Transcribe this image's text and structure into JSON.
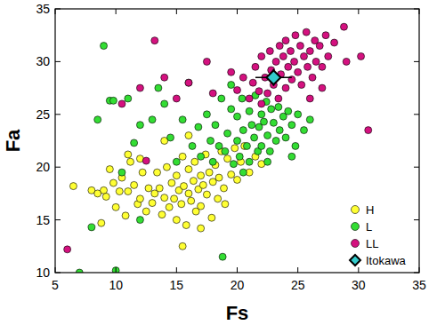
{
  "chart_data": {
    "type": "scatter",
    "x_label": "Fs",
    "y_label": "Fa",
    "xlim": [
      5,
      35
    ],
    "ylim": [
      10,
      35
    ],
    "xticks": [
      5,
      10,
      15,
      20,
      25,
      30,
      35
    ],
    "yticks": [
      10,
      15,
      20,
      25,
      30,
      35
    ],
    "grid": false,
    "legend": "lower right",
    "series": [
      {
        "name": "H",
        "color": "#ffff33",
        "marker": "circle",
        "x": [
          6.5,
          8,
          8.5,
          8.8,
          9,
          9.2,
          9.5,
          9.8,
          10,
          10.3,
          10.5,
          10.8,
          11,
          11.2,
          11.5,
          11.8,
          12,
          12.2,
          12.5,
          12.7,
          13,
          13.2,
          13.4,
          13.6,
          13.8,
          14,
          14.2,
          14.4,
          14.6,
          14.8,
          15,
          15,
          15.2,
          15.4,
          15.5,
          15.6,
          15.8,
          16,
          16,
          16.2,
          16.4,
          16.5,
          16.6,
          16.8,
          17,
          17,
          17.2,
          17.4,
          17.5,
          17.7,
          17.9,
          18,
          18.2,
          18.4,
          18.5,
          18.7,
          18.9,
          19,
          19.2,
          19.5,
          19.8,
          20,
          20.3,
          20.6,
          21,
          21.5,
          22,
          15.5,
          17,
          12,
          14,
          11,
          16
        ],
        "values": [
          18.2,
          17.8,
          17.5,
          14.7,
          17.8,
          17.2,
          19.8,
          18.5,
          16.2,
          17.7,
          19,
          15.4,
          17.7,
          20.5,
          18.3,
          16.5,
          17,
          19.5,
          15.8,
          18,
          16.6,
          17.5,
          19.5,
          18,
          15.5,
          17.1,
          20,
          16.2,
          18.5,
          17,
          19.2,
          15,
          17.8,
          16.5,
          21,
          18.2,
          14.5,
          17.5,
          19.8,
          16.8,
          18.7,
          20.5,
          15.8,
          17.9,
          19.2,
          16.3,
          18.3,
          21.2,
          17.4,
          19.5,
          15.2,
          18.6,
          20.2,
          17,
          19,
          21.5,
          18,
          16.5,
          20.8,
          19.3,
          21.8,
          18.8,
          20.5,
          22,
          19.5,
          21,
          20.3,
          12.5,
          14.2,
          20.8,
          22.5,
          21.2,
          23
        ]
      },
      {
        "name": "L",
        "color": "#33dd33",
        "marker": "circle",
        "x": [
          7,
          8,
          8.5,
          9,
          9.5,
          9.8,
          10,
          10.5,
          11,
          11.5,
          12,
          12,
          13,
          13.5,
          14,
          14.5,
          15,
          15.5,
          16,
          16.3,
          16.8,
          17,
          17.5,
          17.8,
          18,
          18.2,
          18.5,
          18.7,
          18.8,
          19,
          19.2,
          19.5,
          19.7,
          20,
          20,
          20.2,
          20.4,
          20.5,
          20.8,
          21,
          21,
          21.2,
          21.4,
          21.5,
          21.7,
          21.8,
          22,
          22,
          22.2,
          22.4,
          22.5,
          22.7,
          22.8,
          23,
          23.2,
          23.4,
          23.5,
          23.8,
          24,
          24.2,
          24.5,
          24.8,
          25,
          25.5,
          26,
          19.5,
          20.5,
          22.5,
          24.5
        ],
        "values": [
          10,
          14.3,
          24.5,
          31.5,
          26.3,
          26.3,
          10.2,
          19.5,
          26.5,
          22.3,
          24,
          15,
          24.5,
          27.5,
          26,
          22.8,
          20.5,
          24.5,
          28,
          22,
          23.8,
          21,
          25,
          22.5,
          20.5,
          24,
          22,
          26.5,
          11.5,
          21.5,
          23.2,
          25.5,
          20.3,
          22.5,
          24.8,
          21,
          26.5,
          23.5,
          22,
          25.3,
          20.5,
          24,
          22.8,
          26.8,
          21.5,
          23.8,
          25,
          22,
          24.3,
          26.2,
          23,
          21.5,
          25.5,
          24.2,
          22.5,
          25.7,
          23.5,
          24.8,
          22.8,
          25.3,
          24,
          22,
          25,
          23.5,
          24.5,
          27.8,
          19.5,
          20.5,
          21
        ]
      },
      {
        "name": "LL",
        "color": "#d4117f",
        "marker": "circle",
        "x": [
          6,
          10.5,
          12,
          12.5,
          13.2,
          14,
          15,
          16,
          17.5,
          18,
          19.5,
          20,
          20.5,
          21,
          21.3,
          21.5,
          21.8,
          22,
          22,
          22.3,
          22.5,
          22.7,
          22.8,
          23,
          23.2,
          23.4,
          23.5,
          23.6,
          23.8,
          24,
          24,
          24.2,
          24.4,
          24.5,
          24.7,
          24.8,
          25,
          25.2,
          25.3,
          25.5,
          25.7,
          25.8,
          26,
          26.2,
          26.4,
          26.5,
          26.8,
          27,
          27.3,
          27.5,
          28,
          28.8,
          29,
          30.2,
          30.8,
          26,
          27
        ],
        "values": [
          12.2,
          26,
          27.5,
          20.6,
          32,
          28.5,
          26.5,
          28,
          30,
          27,
          29,
          27.3,
          28.5,
          26.5,
          28,
          29.5,
          27.2,
          30.5,
          26,
          28.5,
          27,
          31,
          29.2,
          27.8,
          30,
          26.5,
          31.5,
          28.8,
          30.5,
          27.5,
          32,
          29.5,
          31,
          28.3,
          30,
          32.5,
          29,
          31.5,
          27.8,
          30.5,
          32.8,
          29.5,
          31,
          28.5,
          32,
          30,
          31.5,
          29.5,
          32.5,
          30.5,
          31.8,
          33.3,
          30,
          30.5,
          23.5,
          26.5,
          27.5
        ]
      },
      {
        "name": "Itokawa",
        "color": "#33cccc",
        "marker": "diamond",
        "x": [
          23
        ],
        "values": [
          28.5
        ],
        "x_errors": [
          1.5
        ],
        "y_errors": [
          0.8
        ]
      }
    ]
  }
}
